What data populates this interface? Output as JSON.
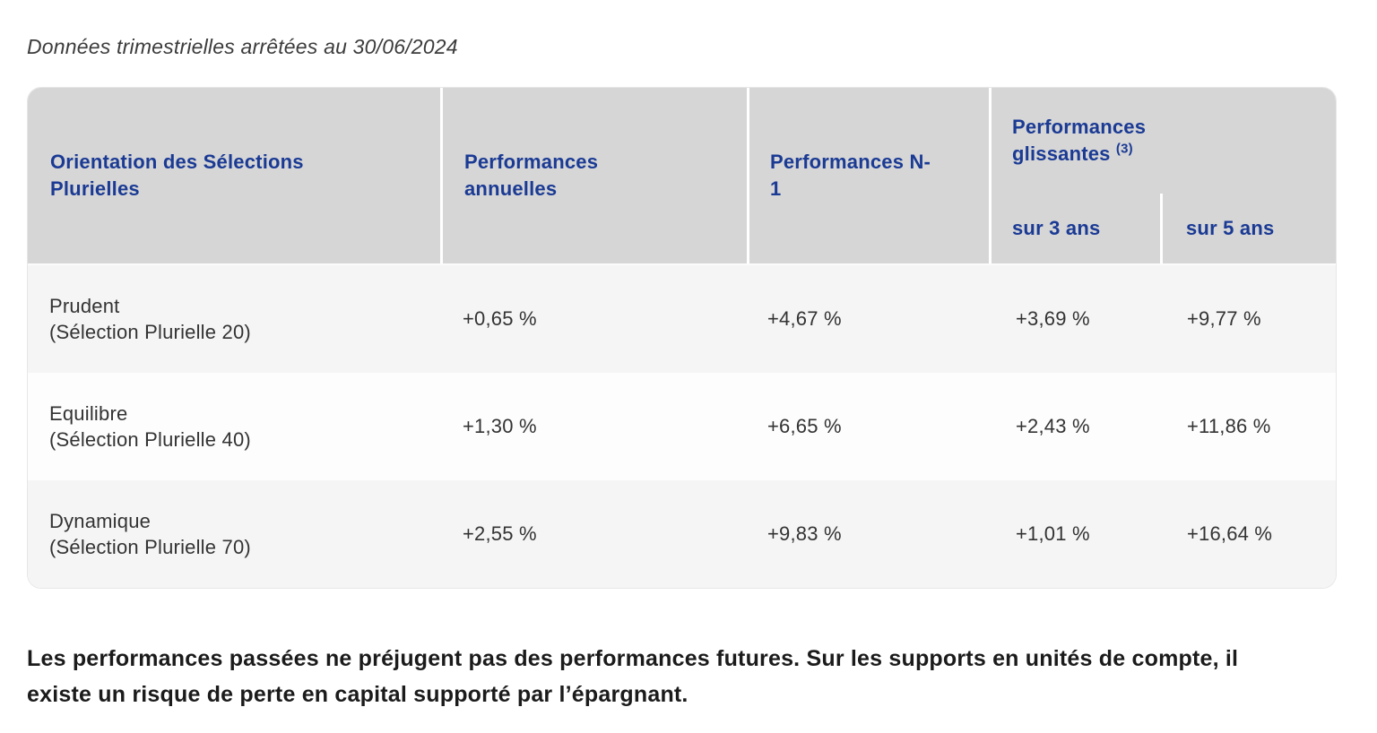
{
  "page": {
    "subtitle": "Données trimestrielles arrêtées au 30/06/2024",
    "disclaimer_line1": "Les performances passées ne préjugent pas des performances futures. Sur les supports en unités de compte, il",
    "disclaimer_line2": "existe un risque de perte en capital supporté par l’épargnant."
  },
  "table": {
    "headers": {
      "orientation": "Orientation des Sélections Plurielles",
      "annual": "Performances annuelles",
      "n_minus_1": "Performances N-1",
      "sliding": "Performances glissantes",
      "sliding_footnote": "(3)",
      "sliding_3y": "sur 3 ans",
      "sliding_5y": "sur 5 ans"
    },
    "rows": [
      {
        "orientation": "Prudent",
        "orientation_sub": "(Sélection Plurielle 20)",
        "annual": "+0,65 %",
        "n_minus_1": "+4,67 %",
        "sliding_3y": "+3,69 %",
        "sliding_5y": "+9,77 %"
      },
      {
        "orientation": "Equilibre",
        "orientation_sub": "(Sélection Plurielle 40)",
        "annual": "+1,30 %",
        "n_minus_1": "+6,65 %",
        "sliding_3y": "+2,43 %",
        "sliding_5y": "+11,86 %"
      },
      {
        "orientation": "Dynamique",
        "orientation_sub": "(Sélection Plurielle 70)",
        "annual": "+2,55 %",
        "n_minus_1": "+9,83 %",
        "sliding_3y": "+1,01 %",
        "sliding_5y": "+16,64 %"
      }
    ]
  },
  "colors": {
    "header_text_blue": "#1a3a94",
    "header_bg_gray": "#d6d6d6",
    "row_alt_bg": "#f5f5f5",
    "row_bg": "#fdfdfd"
  }
}
